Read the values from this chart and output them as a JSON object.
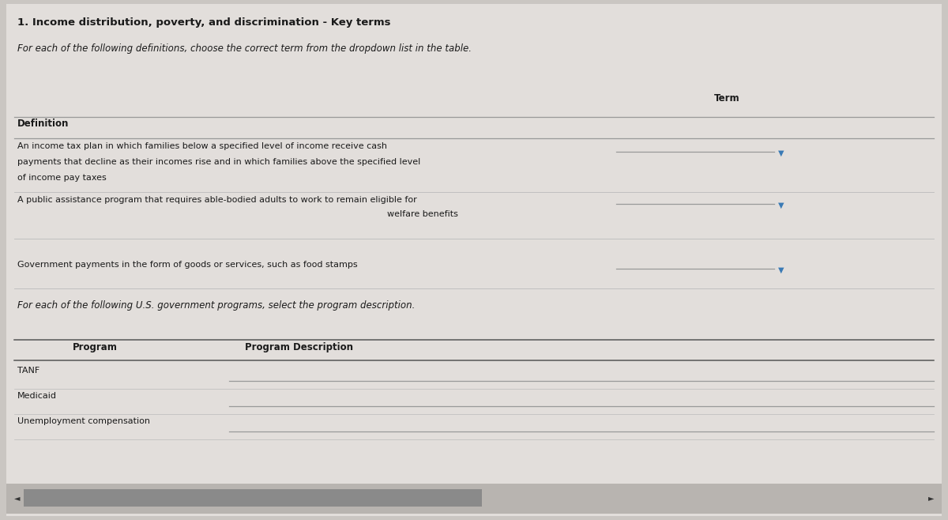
{
  "title": "1. Income distribution, poverty, and discrimination - Key terms",
  "subtitle": "For each of the following definitions, choose the correct term from the dropdown list in the table.",
  "bg_color": "#cac6c2",
  "content_bg": "#e2dedb",
  "definition_header": "Definition",
  "term_header": "Term",
  "def1_line1": "An income tax plan in which families below a specified level of income receive cash",
  "def1_line2": "payments that decline as their incomes rise and in which families above the specified level",
  "def1_line3": "of income pay taxes",
  "def2_line1": "A public assistance program that requires able-bodied adults to work to remain eligible for",
  "def2_line2": "welfare benefits",
  "def3": "Government payments in the form of goods or services, such as food stamps",
  "section2_label": "For each of the following U.S. government programs, select the program description.",
  "program_header": "Program",
  "program_desc_header": "Program Description",
  "programs": [
    "TANF",
    "Medicaid",
    "Unemployment compensation"
  ],
  "title_fontsize": 9.5,
  "subtitle_fontsize": 8.5,
  "header_fontsize": 8.5,
  "body_fontsize": 8.0,
  "line_color": "#999999",
  "divider_color": "#bbbbbb",
  "text_color": "#1a1a1a",
  "arrow_color": "#3a7ab5",
  "scroll_bg": "#b8b4b0",
  "scroll_thumb": "#8a8a8a"
}
